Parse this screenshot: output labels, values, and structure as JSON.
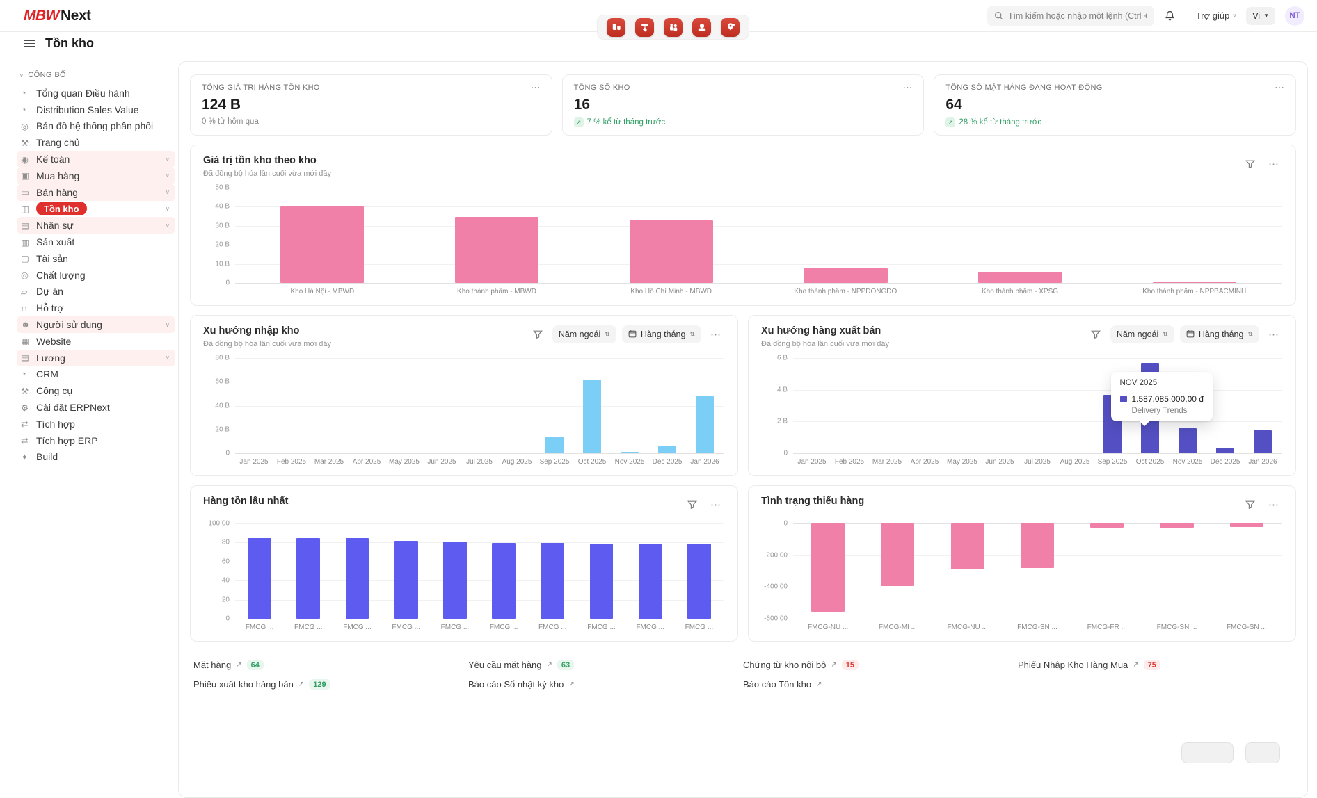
{
  "topbar": {
    "logo_mbw": "MBW",
    "logo_next": "Next",
    "search_placeholder": "Tìm kiếm hoặc nhập một lệnh (Ctrl + G)",
    "help": "Trợ giúp",
    "lang": "Vi",
    "avatar": "NT"
  },
  "header": {
    "title": "Tồn kho"
  },
  "sidebar": {
    "section": "CÔNG BỐ",
    "items": [
      {
        "name": "executive-overview",
        "label": "Tổng quan Điều hành",
        "glyph": "◔"
      },
      {
        "name": "distribution-sales-value",
        "label": "Distribution Sales Value",
        "glyph": "◔"
      },
      {
        "name": "distribution-map",
        "label": "Bản đồ hệ thống phân phối",
        "glyph": "◎"
      },
      {
        "name": "home",
        "label": "Trang chủ",
        "glyph": "⚒"
      },
      {
        "name": "accounting",
        "label": "Kế toán",
        "glyph": "◉",
        "pink": true,
        "chevron": true
      },
      {
        "name": "buying",
        "label": "Mua hàng",
        "glyph": "▣",
        "pink": true,
        "chevron": true
      },
      {
        "name": "selling",
        "label": "Bán hàng",
        "glyph": "▭",
        "pink": true,
        "chevron": true
      },
      {
        "name": "stock",
        "label": "Tồn kho",
        "glyph": "◫",
        "active": true,
        "chevron": true
      },
      {
        "name": "hr",
        "label": "Nhân sự",
        "glyph": "▤",
        "pink": true,
        "chevron": true
      },
      {
        "name": "manufacturing",
        "label": "Sản xuất",
        "glyph": "▥"
      },
      {
        "name": "assets",
        "label": "Tài sản",
        "glyph": "▢"
      },
      {
        "name": "quality",
        "label": "Chất lượng",
        "glyph": "◎"
      },
      {
        "name": "projects",
        "label": "Dự án",
        "glyph": "▱"
      },
      {
        "name": "support",
        "label": "Hỗ trợ",
        "glyph": "∩"
      },
      {
        "name": "users",
        "label": "Người sử dụng",
        "glyph": "☻",
        "pink": true,
        "chevron": true
      },
      {
        "name": "website",
        "label": "Website",
        "glyph": "▦"
      },
      {
        "name": "payroll",
        "label": "Lương",
        "glyph": "▤",
        "pink": true,
        "chevron": true
      },
      {
        "name": "crm",
        "label": "CRM",
        "glyph": "◔"
      },
      {
        "name": "tools",
        "label": "Công cụ",
        "glyph": "⚒"
      },
      {
        "name": "erpnext-settings",
        "label": "Cài đặt ERPNext",
        "glyph": "⚙"
      },
      {
        "name": "integrations",
        "label": "Tích hợp",
        "glyph": "⇄"
      },
      {
        "name": "erp-integrations",
        "label": "Tích hợp ERP",
        "glyph": "⇄"
      },
      {
        "name": "build",
        "label": "Build",
        "glyph": "✦"
      }
    ]
  },
  "cards": [
    {
      "title": "TỔNG GIÁ TRỊ HÀNG TỒN KHO",
      "value": "124 B",
      "change": "0 % từ hôm qua",
      "positive": false
    },
    {
      "title": "TỔNG SỐ KHO",
      "value": "16",
      "change": "7 % kể từ tháng trước",
      "positive": true
    },
    {
      "title": "TỔNG SỐ MẶT HÀNG ĐANG HOẠT ĐỘNG",
      "value": "64",
      "change": "28 % kể từ tháng trước",
      "positive": true
    }
  ],
  "filters": {
    "year": "Năm ngoái",
    "freq": "Hàng tháng"
  },
  "chart_data": [
    {
      "type": "bar",
      "title": "Giá trị tồn kho theo kho",
      "subtitle": "Đã đồng bộ hóa lần cuối vừa mới đây",
      "categories": [
        "Kho Hà Nội - MBWD",
        "Kho thành phẩm - MBWD",
        "Kho Hồ Chí Minh - MBWD",
        "Kho thành phẩm - NPPDONGDO",
        "Kho thành phẩm - XPSG",
        "Kho thành phẩm - NPPBACMINH"
      ],
      "values": [
        40,
        34.5,
        33,
        7.5,
        5.8,
        0.9
      ],
      "yticks": [
        "50 B",
        "40 B",
        "30 B",
        "20 B",
        "10 B",
        "0"
      ],
      "ymax": 50,
      "ymin": 0,
      "color": "#f080a8",
      "controls": [
        "filter",
        "menu"
      ]
    },
    {
      "type": "bar",
      "title": "Xu hướng nhập kho",
      "subtitle": "Đã đồng bộ hóa lần cuối vừa mới đây",
      "categories": [
        "Jan 2025",
        "Feb 2025",
        "Mar 2025",
        "Apr 2025",
        "May 2025",
        "Jun 2025",
        "Jul 2025",
        "Aug 2025",
        "Sep 2025",
        "Oct 2025",
        "Nov 2025",
        "Dec 2025",
        "Jan 2026"
      ],
      "values": [
        0,
        0,
        0,
        0,
        0,
        0,
        0,
        0.5,
        14,
        62,
        1,
        6,
        48
      ],
      "yticks": [
        "80 B",
        "60 B",
        "40 B",
        "20 B",
        "0"
      ],
      "ymax": 80,
      "ymin": 0,
      "color": "#7bcef5",
      "controls": [
        "filter",
        "year",
        "freq",
        "menu"
      ]
    },
    {
      "type": "bar",
      "title": "Xu hướng hàng xuất bán",
      "subtitle": "Đã đồng bộ hóa lần cuối vừa mới đây",
      "categories": [
        "Jan 2025",
        "Feb 2025",
        "Mar 2025",
        "Apr 2025",
        "May 2025",
        "Jun 2025",
        "Jul 2025",
        "Aug 2025",
        "Sep 2025",
        "Oct 2025",
        "Nov 2025",
        "Dec 2025",
        "Jan 2026"
      ],
      "values": [
        0,
        0,
        0,
        0,
        0,
        0,
        0,
        0,
        3.7,
        5.7,
        1.59,
        0.35,
        1.45
      ],
      "yticks": [
        "6 B",
        "4 B",
        "2 B",
        "0"
      ],
      "ymax": 6,
      "ymin": 0,
      "color": "#5450c4",
      "controls": [
        "filter",
        "year",
        "freq",
        "menu"
      ],
      "tooltip": {
        "title": "NOV 2025",
        "value": "1.587.085.000,00 đ",
        "series": "Delivery Trends"
      }
    },
    {
      "type": "bar",
      "title": "Hàng tồn lâu nhất",
      "categories": [
        "FMCG ...",
        "FMCG ...",
        "FMCG ...",
        "FMCG ...",
        "FMCG ...",
        "FMCG ...",
        "FMCG ...",
        "FMCG ...",
        "FMCG ...",
        "FMCG ..."
      ],
      "values": [
        84.5,
        84.5,
        84.5,
        82,
        81,
        79.5,
        79.5,
        79,
        78.5,
        78.5
      ],
      "yticks": [
        "100.00",
        "80",
        "60",
        "40",
        "20",
        "0"
      ],
      "ymax": 100,
      "ymin": 0,
      "color": "#5e5cf0",
      "controls": [
        "filter",
        "menu"
      ]
    },
    {
      "type": "bar",
      "title": "Tình trạng thiếu hàng",
      "categories": [
        "FMCG-NU ...",
        "FMCG-MI ...",
        "FMCG-NU ...",
        "FMCG-SN ...",
        "FMCG-FR ...",
        "FMCG-SN ...",
        "FMCG-SN ..."
      ],
      "values": [
        -555,
        -395,
        -290,
        -280,
        -25,
        -25,
        -22
      ],
      "yticks": [
        "0",
        "-200.00",
        "-400.00",
        "-600.00"
      ],
      "ymax": 0,
      "ymin": -600,
      "color": "#f080a8",
      "controls": [
        "filter",
        "menu"
      ]
    }
  ],
  "links": [
    [
      {
        "name": "item",
        "label": "Mặt hàng",
        "count": "64",
        "badge": "g"
      },
      {
        "name": "material-request",
        "label": "Yêu cầu mặt hàng",
        "count": "63",
        "badge": "g"
      },
      {
        "name": "internal-stock-entry",
        "label": "Chứng từ kho nội bộ",
        "count": "15",
        "badge": "r"
      },
      {
        "name": "purchase-receipt",
        "label": "Phiếu Nhập Kho Hàng Mua",
        "count": "75",
        "badge": "r"
      }
    ],
    [
      {
        "name": "delivery-note",
        "label": "Phiếu xuất kho hàng bán",
        "count": "129",
        "badge": "g"
      },
      {
        "name": "stock-ledger-report",
        "label": "Báo cáo Sổ nhật ký kho"
      },
      {
        "name": "stock-balance-report",
        "label": "Báo cáo Tồn kho"
      }
    ]
  ]
}
